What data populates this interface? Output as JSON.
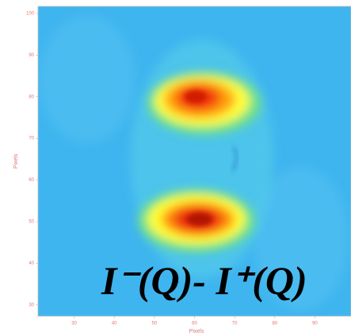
{
  "chart_data": {
    "type": "heatmap",
    "xlabel": "Pixels",
    "ylabel": "Pixels",
    "xlim": [
      21,
      99
    ],
    "xticks": [
      30,
      40,
      50,
      60,
      70,
      80,
      90
    ],
    "ylim": [
      27.3,
      101.7
    ],
    "yticks": [
      30,
      40,
      50,
      60,
      70,
      80,
      90,
      100
    ],
    "annotation": "I⁻(Q)- I⁺(Q)"
  }
}
